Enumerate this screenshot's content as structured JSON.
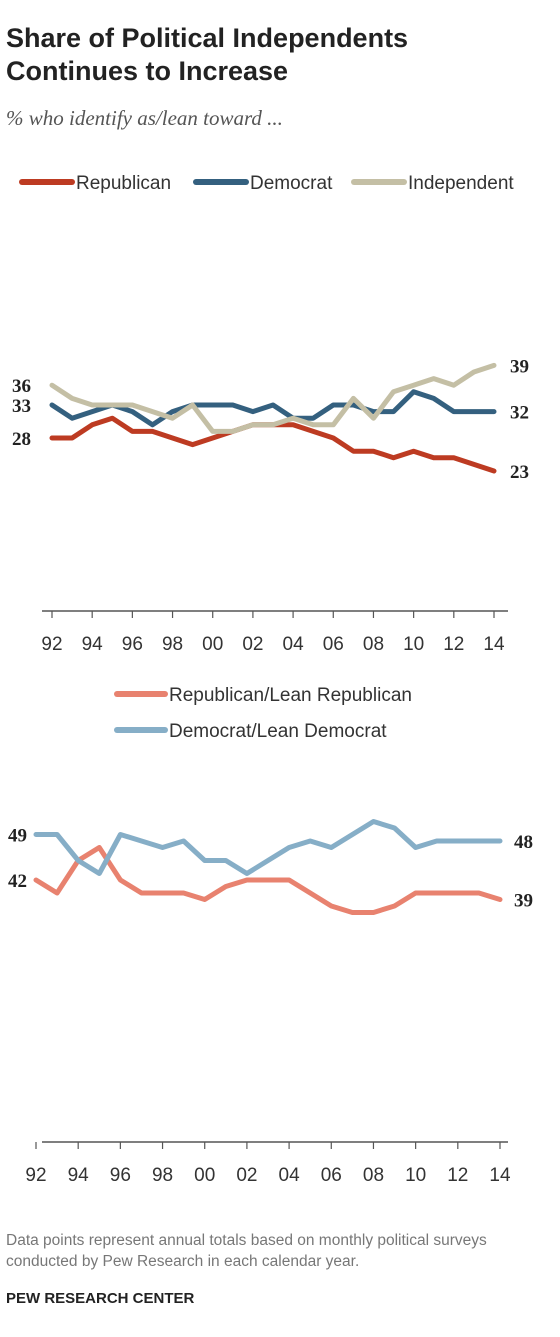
{
  "header": {
    "title": "Share of Political Independents Continues to Increase",
    "subtitle": "% who identify as/lean toward ..."
  },
  "colors": {
    "republican": "#bd3b22",
    "democrat": "#34607f",
    "independent": "#c4bfa5",
    "lean_republican": "#e8826f",
    "lean_democrat": "#86aec7",
    "axis": "#555555"
  },
  "chart_data": [
    {
      "type": "line",
      "x_ticks": [
        "92",
        "94",
        "96",
        "98",
        "00",
        "02",
        "04",
        "06",
        "08",
        "10",
        "12",
        "14"
      ],
      "x_domain": [
        1992,
        2014
      ],
      "ylim": [
        0,
        100
      ],
      "legend_placement": "top",
      "series": [
        {
          "key": "republican",
          "name": "Republican",
          "color_key": "republican",
          "x": [
            1992,
            1993,
            1994,
            1995,
            1996,
            1997,
            1998,
            1999,
            2000,
            2001,
            2002,
            2003,
            2004,
            2005,
            2006,
            2007,
            2008,
            2009,
            2010,
            2011,
            2012,
            2013,
            2014
          ],
          "values": [
            28,
            28,
            30,
            31,
            29,
            29,
            28,
            27,
            28,
            29,
            30,
            30,
            30,
            29,
            28,
            26,
            26,
            25,
            26,
            25,
            25,
            24,
            23
          ],
          "start_label": "28",
          "end_label": "23"
        },
        {
          "key": "democrat",
          "name": "Democrat",
          "color_key": "democrat",
          "x": [
            1992,
            1993,
            1994,
            1995,
            1996,
            1997,
            1998,
            1999,
            2000,
            2001,
            2002,
            2003,
            2004,
            2005,
            2006,
            2007,
            2008,
            2009,
            2010,
            2011,
            2012,
            2013,
            2014
          ],
          "values": [
            33,
            31,
            32,
            33,
            32,
            30,
            32,
            33,
            33,
            33,
            32,
            33,
            31,
            31,
            33,
            33,
            32,
            32,
            35,
            34,
            32,
            32,
            32
          ],
          "start_label": "33",
          "end_label": "32"
        },
        {
          "key": "independent",
          "name": "Independent",
          "color_key": "independent",
          "x": [
            1992,
            1993,
            1994,
            1995,
            1996,
            1997,
            1998,
            1999,
            2000,
            2001,
            2002,
            2003,
            2004,
            2005,
            2006,
            2007,
            2008,
            2009,
            2010,
            2011,
            2012,
            2013,
            2014
          ],
          "values": [
            36,
            34,
            33,
            33,
            33,
            32,
            31,
            33,
            29,
            29,
            30,
            30,
            31,
            30,
            30,
            34,
            31,
            35,
            36,
            37,
            36,
            38,
            39
          ],
          "start_label": "36",
          "end_label": "39"
        }
      ]
    },
    {
      "type": "line",
      "x_ticks": [
        "92",
        "94",
        "96",
        "98",
        "00",
        "02",
        "04",
        "06",
        "08",
        "10",
        "12",
        "14"
      ],
      "x_domain": [
        1992,
        2014
      ],
      "ylim": [
        0,
        100
      ],
      "legend_placement": "top",
      "series": [
        {
          "key": "lean_republican",
          "name": "Republican/Lean Republican",
          "color_key": "lean_republican",
          "x": [
            1992,
            1993,
            1994,
            1995,
            1996,
            1997,
            1998,
            1999,
            2000,
            2001,
            2002,
            2003,
            2004,
            2005,
            2006,
            2007,
            2008,
            2009,
            2010,
            2011,
            2012,
            2013,
            2014
          ],
          "values": [
            42,
            40,
            45,
            47,
            42,
            40,
            40,
            40,
            39,
            41,
            42,
            42,
            42,
            40,
            38,
            37,
            37,
            38,
            40,
            40,
            40,
            40,
            39
          ],
          "start_label": "42",
          "end_label": "39"
        },
        {
          "key": "lean_democrat",
          "name": "Democrat/Lean Democrat",
          "color_key": "lean_democrat",
          "x": [
            1992,
            1993,
            1994,
            1995,
            1996,
            1997,
            1998,
            1999,
            2000,
            2001,
            2002,
            2003,
            2004,
            2005,
            2006,
            2007,
            2008,
            2009,
            2010,
            2011,
            2012,
            2013,
            2014
          ],
          "values": [
            49,
            49,
            45,
            43,
            49,
            48,
            47,
            48,
            45,
            45,
            43,
            45,
            47,
            48,
            47,
            49,
            51,
            50,
            47,
            48,
            48,
            48,
            48
          ],
          "start_label": "49",
          "end_label": "48"
        }
      ]
    }
  ],
  "footer": {
    "note": "Data points represent annual totals based on monthly political surveys conducted by Pew Research in each calendar year.",
    "source": "PEW RESEARCH CENTER"
  }
}
